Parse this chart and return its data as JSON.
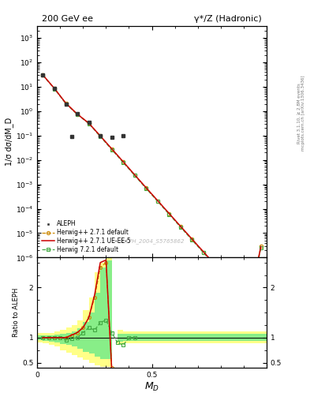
{
  "title_left": "200 GeV ee",
  "title_right": "γ*/Z (Hadronic)",
  "ylabel_main": "1/σ dσ/dM_D",
  "ylabel_ratio": "Ratio to ALEPH",
  "xlabel": "M_D",
  "right_label": "Rivet 3.1.10, ≥ 2.8M events",
  "right_label2": "mcplots.cern.ch [arXiv:1306.3436]",
  "watermark": "ALEPH_2004_S5765862",
  "ylim_main": [
    1e-06,
    3000.0
  ],
  "xlim": [
    0,
    1
  ],
  "ylim_ratio": [
    0.4,
    2.6
  ],
  "aleph_x": [
    0.025,
    0.075,
    0.125,
    0.175,
    0.225,
    0.275,
    0.325,
    0.375
  ],
  "aleph_y": [
    30.0,
    8.5,
    2.0,
    0.8,
    0.35,
    0.1,
    0.085,
    0.1
  ],
  "aleph_special_x": [
    0.15
  ],
  "aleph_special_y": [
    0.09
  ],
  "herwig271_x": [
    0.025,
    0.075,
    0.125,
    0.175,
    0.225,
    0.275,
    0.325,
    0.375,
    0.425,
    0.475,
    0.525,
    0.575,
    0.625,
    0.675,
    0.725,
    0.775,
    0.825,
    0.875,
    0.925,
    0.975
  ],
  "herwig271_y": [
    30.0,
    8.5,
    2.1,
    0.75,
    0.32,
    0.095,
    0.028,
    0.0082,
    0.0024,
    0.0007,
    0.00021,
    6.2e-05,
    1.85e-05,
    5.5e-06,
    1.65e-06,
    4.9e-07,
    1.47e-07,
    4.4e-08,
    1.3e-08,
    3e-06
  ],
  "herwig271ue_x": [
    0.025,
    0.075,
    0.125,
    0.175,
    0.225,
    0.275,
    0.325,
    0.375,
    0.425,
    0.475,
    0.525,
    0.575,
    0.625,
    0.675,
    0.725,
    0.775,
    0.825,
    0.875,
    0.925,
    0.975
  ],
  "herwig271ue_y": [
    30.0,
    8.5,
    2.1,
    0.75,
    0.32,
    0.096,
    0.0285,
    0.0084,
    0.00245,
    0.00072,
    0.000215,
    6.4e-05,
    1.9e-05,
    5.7e-06,
    1.7e-06,
    5.1e-07,
    1.52e-07,
    4.5e-08,
    1.35e-08,
    2.8e-06
  ],
  "herwig721_x": [
    0.025,
    0.075,
    0.125,
    0.175,
    0.225,
    0.275,
    0.325,
    0.375,
    0.425,
    0.475,
    0.525,
    0.575,
    0.625,
    0.675,
    0.725,
    0.775,
    0.825,
    0.875,
    0.925,
    0.975
  ],
  "herwig721_y": [
    29.5,
    8.2,
    2.0,
    0.72,
    0.31,
    0.09,
    0.0265,
    0.0078,
    0.0023,
    0.00067,
    0.0002,
    5.9e-05,
    1.76e-05,
    5.2e-06,
    1.56e-06,
    4.65e-07,
    1.39e-07,
    4.15e-08,
    1.24e-08,
    2.5e-06
  ],
  "ratio_herwig271_x": [
    0.025,
    0.05,
    0.075,
    0.1,
    0.125,
    0.15,
    0.175,
    0.2,
    0.225,
    0.25,
    0.275,
    0.3,
    0.325,
    0.35
  ],
  "ratio_herwig271_y": [
    1.0,
    1.0,
    1.0,
    1.0,
    1.0,
    1.05,
    1.1,
    1.2,
    1.4,
    1.8,
    2.4,
    2.5,
    0.4,
    0.05
  ],
  "ratio_herwig271ue_x": [
    0.025,
    0.05,
    0.075,
    0.1,
    0.125,
    0.15,
    0.175,
    0.2,
    0.225,
    0.25,
    0.275,
    0.3,
    0.325,
    0.35
  ],
  "ratio_herwig271ue_y": [
    1.0,
    1.0,
    1.0,
    1.0,
    1.0,
    1.05,
    1.1,
    1.2,
    1.4,
    1.85,
    2.5,
    2.55,
    0.35,
    0.04
  ],
  "ratio_herwig721_x": [
    0.025,
    0.05,
    0.075,
    0.1,
    0.125,
    0.15,
    0.175,
    0.2,
    0.225,
    0.25,
    0.275,
    0.3,
    0.325,
    0.35,
    0.375,
    0.4,
    0.425
  ],
  "ratio_herwig721_y": [
    1.0,
    1.0,
    1.0,
    1.0,
    0.95,
    0.98,
    1.0,
    1.1,
    1.2,
    1.15,
    1.3,
    1.35,
    1.1,
    0.9,
    0.85,
    1.0,
    1.0
  ],
  "band_yellow_edges": [
    0.0,
    0.025,
    0.05,
    0.075,
    0.1,
    0.125,
    0.15,
    0.175,
    0.2,
    0.225,
    0.25,
    0.275,
    0.3,
    0.325,
    0.35,
    0.375,
    1.0
  ],
  "band_yellow_lo": [
    0.9,
    0.88,
    0.85,
    0.82,
    0.75,
    0.7,
    0.65,
    0.6,
    0.55,
    0.5,
    0.45,
    0.42,
    0.42,
    2.5,
    0.85,
    0.88,
    0.88
  ],
  "band_yellow_hi": [
    1.1,
    1.1,
    1.1,
    1.12,
    1.15,
    1.2,
    1.25,
    1.35,
    1.55,
    1.8,
    2.3,
    2.5,
    2.6,
    2.5,
    1.15,
    1.12,
    1.12
  ],
  "band_green_edges": [
    0.0,
    0.025,
    0.05,
    0.075,
    0.1,
    0.125,
    0.15,
    0.175,
    0.2,
    0.225,
    0.25,
    0.275,
    0.3,
    0.325,
    0.35,
    0.375,
    1.0
  ],
  "band_green_lo": [
    0.95,
    0.93,
    0.92,
    0.9,
    0.87,
    0.85,
    0.82,
    0.78,
    0.72,
    0.68,
    0.62,
    0.58,
    0.58,
    2.5,
    0.92,
    0.93,
    0.93
  ],
  "band_green_hi": [
    1.05,
    1.05,
    1.05,
    1.06,
    1.07,
    1.1,
    1.12,
    1.18,
    1.32,
    1.5,
    1.9,
    2.4,
    2.55,
    2.5,
    1.08,
    1.07,
    1.07
  ],
  "color_herwig271": "#cc8800",
  "color_herwig271ue": "#cc0000",
  "color_herwig721": "#44aa44",
  "color_aleph": "#333333",
  "color_yellow_band": "#ffff88",
  "color_green_band": "#88ee88"
}
